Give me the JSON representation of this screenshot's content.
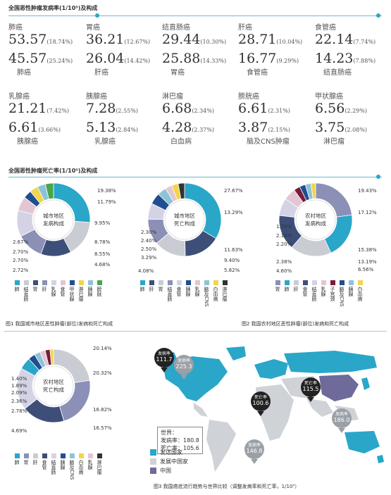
{
  "incidence": {
    "title": "全国恶性肿瘤发病率(1/10⁵)及构成",
    "top": [
      {
        "name": "肺癌",
        "value": "53.57",
        "pct": "(18.74%)"
      },
      {
        "name": "胃癌",
        "value": "36.21",
        "pct": "(12.67%)"
      },
      {
        "name": "结直肠癌",
        "value": "29.44",
        "pct": "(10.30%)"
      },
      {
        "name": "肝癌",
        "value": "28.71",
        "pct": "(10.04%)"
      },
      {
        "name": "食管癌",
        "value": "22.14",
        "pct": "(7.74%)"
      }
    ],
    "bottom": [
      {
        "name": "肺癌",
        "value": "45.57",
        "pct": "(25.24%)"
      },
      {
        "name": "肝癌",
        "value": "26.04",
        "pct": "(14.42%)"
      },
      {
        "name": "胃癌",
        "value": "25.88",
        "pct": "(14.33%)"
      },
      {
        "name": "食管癌",
        "value": "16.77",
        "pct": "(9.29%)"
      },
      {
        "name": "结直肠癌",
        "value": "14.23",
        "pct": "(7.88%)"
      }
    ],
    "top2": [
      {
        "name": "乳腺癌",
        "value": "21.21",
        "pct": "(7.42%)"
      },
      {
        "name": "胰腺癌",
        "value": "7.28",
        "pct": "(2.55%)"
      },
      {
        "name": "淋巴瘤",
        "value": "6.68",
        "pct": "(2.34%)"
      },
      {
        "name": "膀胱癌",
        "value": "6.61",
        "pct": "(2.31%)"
      },
      {
        "name": "甲状腺癌",
        "value": "6.56",
        "pct": "(2.29%)"
      }
    ],
    "bottom2": [
      {
        "name": "胰腺癌",
        "value": "6.61",
        "pct": "(3.66%)"
      },
      {
        "name": "乳腺癌",
        "value": "5.13",
        "pct": "(2.84%)"
      },
      {
        "name": "白血病",
        "value": "4.28",
        "pct": "(2.37%)"
      },
      {
        "name": "脑及CNS肿瘤",
        "value": "3.87",
        "pct": "(2.15%)"
      },
      {
        "name": "淋巴瘤",
        "value": "3.75",
        "pct": "(2.08%)"
      }
    ]
  },
  "mortality": {
    "title": "全国恶性肿瘤死亡率(1/10⁵)及构成"
  },
  "chart_data": [
    {
      "type": "pie",
      "center_label": [
        "城市地区",
        "发病构成"
      ],
      "slices": [
        {
          "label": "19.38%",
          "value": 19.38,
          "color": "#2aa6c9"
        },
        {
          "label": "11.79%",
          "value": 11.79,
          "color": "#c9ccd2"
        },
        {
          "label": "9.95%",
          "value": 9.95,
          "color": "#3d4f78"
        },
        {
          "label": "8.78%",
          "value": 8.78,
          "color": "#8c8fb6"
        },
        {
          "label": "8.55%",
          "value": 8.55,
          "color": "#d4d3e6"
        },
        {
          "label": "4.68%",
          "value": 4.68,
          "color": "#e3c6d3"
        },
        {
          "label": "2.72%",
          "value": 2.72,
          "color": "#1f4f8f"
        },
        {
          "label": "2.70%",
          "value": 2.7,
          "color": "#f1d54a"
        },
        {
          "label": "2.70%",
          "value": 2.7,
          "color": "#8bc4d9"
        },
        {
          "label": "2.67%",
          "value": 2.67,
          "color": "#4aa54c"
        }
      ],
      "legend": [
        "肺",
        "结直肠",
        "胃",
        "肝",
        "乳腺",
        "食管",
        "甲状腺",
        "淋巴瘤",
        "胰腺",
        "膀胱"
      ],
      "legend_colors": [
        "#2aa6c9",
        "#c9ccd2",
        "#3d4f78",
        "#8c8fb6",
        "#d4d3e6",
        "#e3c6d3",
        "#1f4f8f",
        "#f1d54a",
        "#8bc4d9",
        "#4aa54c"
      ]
    },
    {
      "type": "pie",
      "center_label": [
        "城市地区",
        "死亡构成"
      ],
      "slices": [
        {
          "label": "27.67%",
          "value": 27.67,
          "color": "#2aa6c9"
        },
        {
          "label": "13.29%",
          "value": 13.29,
          "color": "#3d4f78"
        },
        {
          "label": "11.63%",
          "value": 11.63,
          "color": "#c9ccd2"
        },
        {
          "label": "9.40%",
          "value": 9.4,
          "color": "#8c8fb6"
        },
        {
          "label": "5.82%",
          "value": 5.82,
          "color": "#d4d3e6"
        },
        {
          "label": "4.08%",
          "value": 4.08,
          "color": "#1f4f8f"
        },
        {
          "label": "3.29%",
          "value": 3.29,
          "color": "#8bc4d9"
        },
        {
          "label": "2.50%",
          "value": 2.5,
          "color": "#e3c6d3"
        },
        {
          "label": "2.40%",
          "value": 2.4,
          "color": "#f1d54a"
        },
        {
          "label": "2.30%",
          "value": 2.3,
          "color": "#333333"
        }
      ],
      "legend": [
        "肺",
        "肝",
        "胃",
        "结直肠",
        "食管",
        "胰腺",
        "乳腺",
        "脑及CNS",
        "白血病",
        "淋巴瘤"
      ],
      "legend_colors": [
        "#2aa6c9",
        "#3d4f78",
        "#c9ccd2",
        "#8c8fb6",
        "#d4d3e6",
        "#1f4f8f",
        "#e3c6d3",
        "#8bc4d9",
        "#f1d54a",
        "#333333"
      ]
    },
    {
      "type": "pie",
      "center_label": [
        "农村地区",
        "发病构成"
      ],
      "slices": [
        {
          "label": "19.43%",
          "value": 19.43,
          "color": "#8c8fb6"
        },
        {
          "label": "17.12%",
          "value": 17.12,
          "color": "#2aa6c9"
        },
        {
          "label": "15.38%",
          "value": 15.38,
          "color": "#c9ccd2"
        },
        {
          "label": "13.19%",
          "value": 13.19,
          "color": "#3d4f78"
        },
        {
          "label": "6.56%",
          "value": 6.56,
          "color": "#d4d3e6"
        },
        {
          "label": "4.60%",
          "value": 4.6,
          "color": "#e3c6d3"
        },
        {
          "label": "2.38%",
          "value": 2.38,
          "color": "#7a1a3c"
        },
        {
          "label": "2.20%",
          "value": 2.2,
          "color": "#1f4f8f"
        },
        {
          "label": "2.16%",
          "value": 2.16,
          "color": "#8bc4d9"
        },
        {
          "label": "1.70%",
          "value": 1.7,
          "color": "#f1d54a"
        }
      ],
      "legend": [
        "胃",
        "肺",
        "肝",
        "食管",
        "结直肠",
        "乳腺",
        "子宫颈",
        "脑及CNS",
        "胰腺",
        "白血病"
      ],
      "legend_colors": [
        "#8c8fb6",
        "#2aa6c9",
        "#c9ccd2",
        "#3d4f78",
        "#d4d3e6",
        "#e3c6d3",
        "#7a1a3c",
        "#1f4f8f",
        "#8bc4d9",
        "#f1d54a"
      ]
    },
    {
      "type": "pie",
      "center_label": [
        "农村地区",
        "死亡构成"
      ],
      "slices": [
        {
          "label": "20.14%",
          "value": 20.14,
          "color": "#c9ccd2"
        },
        {
          "label": "20.32%",
          "value": 20.32,
          "color": "#8c8fb6"
        },
        {
          "label": "16.82%",
          "value": 16.82,
          "color": "#3d4f78"
        },
        {
          "label": "16.57%",
          "value": 16.57,
          "color": "#d4d3e6"
        },
        {
          "label": "4.69%",
          "value": 4.69,
          "color": "#2aa6c9"
        },
        {
          "label": "2.78%",
          "value": 2.78,
          "color": "#1f4f8f"
        },
        {
          "label": "2.36%",
          "value": 2.36,
          "color": "#8bc4d9"
        },
        {
          "label": "2.09%",
          "value": 2.09,
          "color": "#e3c6d3"
        },
        {
          "label": "1.89%",
          "value": 1.89,
          "color": "#7a1a3c"
        },
        {
          "label": "1.40%",
          "value": 1.4,
          "color": "#f1d54a"
        }
      ],
      "legend": [
        "肺",
        "胃",
        "肝",
        "食管",
        "结直肠",
        "胰腺",
        "脑及CNS",
        "白血病",
        "乳腺",
        "淋巴瘤"
      ],
      "legend_colors": [
        "#2aa6c9",
        "#8c8fb6",
        "#c9ccd2",
        "#3d4f78",
        "#d4d3e6",
        "#1f4f8f",
        "#8bc4d9",
        "#f1d54a",
        "#e3c6d3",
        "#333333"
      ]
    }
  ],
  "captions": {
    "fig1": "图1 我国城市地区恶性肿瘤(部位)发病和死亡构成",
    "fig2": "图2 我国农村地区恶性肿瘤(部位)发病和死亡构成",
    "fig3": "图3 我国癌症流行趋势与世界比较（调整发病率和死亡率，1/10⁵）"
  },
  "map": {
    "pins": [
      {
        "top": "发病率",
        "val": "111.7",
        "color": "#222222"
      },
      {
        "top": "发病率",
        "val": "225.3",
        "color": "#9aa0a6"
      },
      {
        "top": "死亡率",
        "val": "100.6",
        "color": "#222222"
      },
      {
        "top": "死亡率",
        "val": "115.5",
        "color": "#222222"
      },
      {
        "top": "发病率",
        "val": "186.0",
        "color": "#9aa0a6"
      },
      {
        "top": "发病率",
        "val": "146.8",
        "color": "#9aa0a6"
      }
    ],
    "world_box": {
      "title": "世界：",
      "line1": "发病率：180.8",
      "line2": "死亡率：105.6"
    },
    "legend": [
      {
        "label": "发达国家",
        "color": "#2aa6c9"
      },
      {
        "label": "发展中国家",
        "color": "#cfd2d6"
      },
      {
        "label": "中国",
        "color": "#6e6a9a"
      }
    ]
  }
}
